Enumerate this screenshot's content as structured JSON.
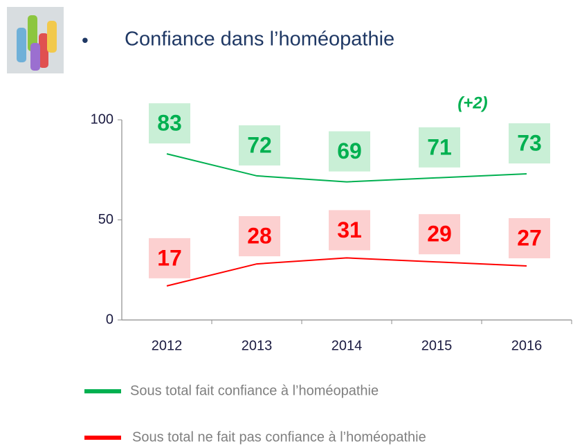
{
  "chart_data": {
    "type": "line",
    "title": "Confiance dans l’homéopathie",
    "annotation": "(+2)",
    "categories": [
      "2012",
      "2013",
      "2014",
      "2015",
      "2016"
    ],
    "series": [
      {
        "name": "Sous total fait confiance à l’homéopathie",
        "color": "#00b050",
        "label_bg": "#c9efd6",
        "values": [
          83,
          72,
          69,
          71,
          73
        ]
      },
      {
        "name": "Sous total ne fait pas confiance à l’homéopathie",
        "color": "#ff0000",
        "label_bg": "#fcd0d0",
        "values": [
          17,
          28,
          31,
          29,
          27
        ]
      }
    ],
    "ylim": [
      0,
      100
    ],
    "yticks": [
      0,
      50,
      100
    ],
    "grid": false,
    "legend": "bottom"
  }
}
